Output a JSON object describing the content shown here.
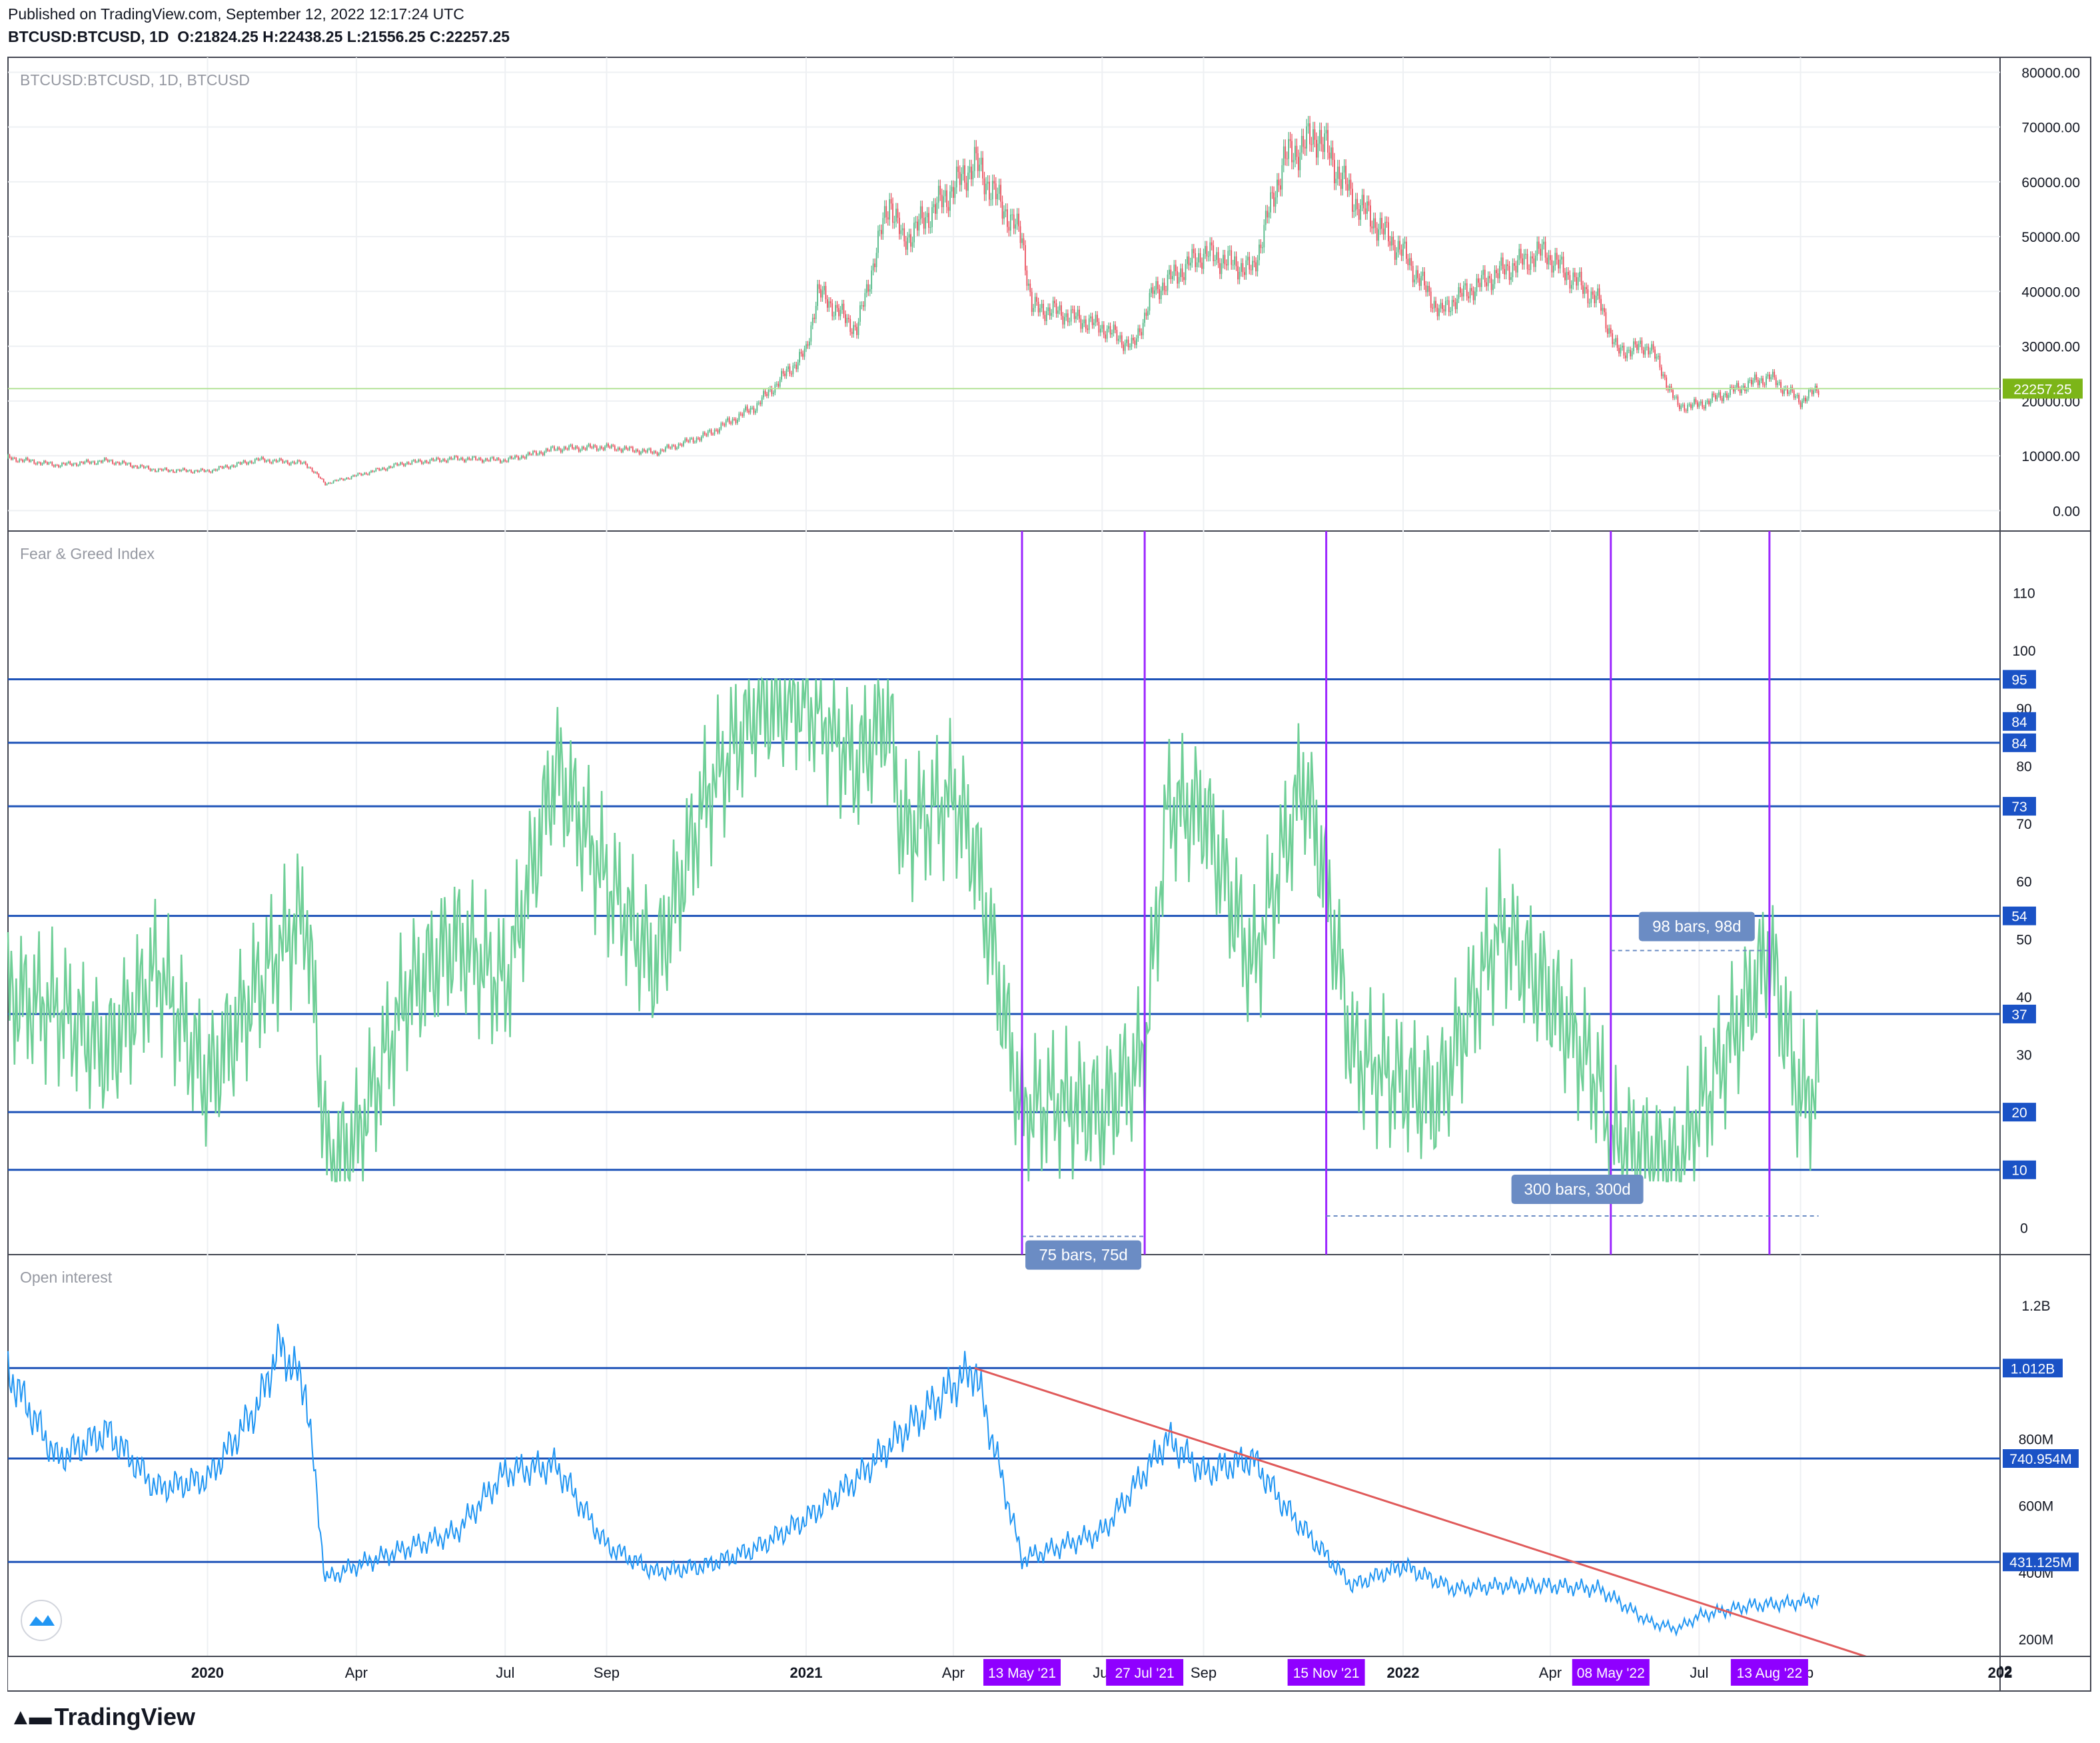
{
  "header": {
    "published": "Published on TradingView.com, September 12, 2022 12:17:24 UTC",
    "symbol": "BTCUSD:BTCUSD, 1D",
    "open_label": "O:",
    "open": "21824.25",
    "high_label": "H:",
    "high": "22438.25",
    "low_label": "L:",
    "low": "21556.25",
    "close_label": "C:",
    "close": "22257.25"
  },
  "brand": {
    "name": "TradingView",
    "logo_icon": "tradingview-logo-icon"
  },
  "chart_data": [
    {
      "type": "line",
      "title": "BTCUSD:BTCUSD, 1D, BTCUSD",
      "style": "candlestick",
      "x": [
        "2019-09-01",
        "2019-10-01",
        "2019-11-01",
        "2019-12-01",
        "2020-01-01",
        "2020-02-01",
        "2020-03-01",
        "2020-03-13",
        "2020-04-01",
        "2020-05-01",
        "2020-06-01",
        "2020-07-01",
        "2020-08-01",
        "2020-09-01",
        "2020-10-01",
        "2020-11-01",
        "2020-12-01",
        "2021-01-01",
        "2021-01-08",
        "2021-02-01",
        "2021-02-21",
        "2021-03-01",
        "2021-04-01",
        "2021-04-14",
        "2021-05-13",
        "2021-05-19",
        "2021-06-01",
        "2021-07-01",
        "2021-07-20",
        "2021-08-01",
        "2021-09-01",
        "2021-10-01",
        "2021-10-20",
        "2021-11-10",
        "2021-12-01",
        "2022-01-01",
        "2022-01-24",
        "2022-02-01",
        "2022-03-01",
        "2022-03-29",
        "2022-04-01",
        "2022-05-01",
        "2022-05-12",
        "2022-06-01",
        "2022-06-18",
        "2022-07-01",
        "2022-08-01",
        "2022-08-13",
        "2022-09-01",
        "2022-09-12"
      ],
      "values": [
        9600,
        8300,
        9100,
        7400,
        7200,
        9300,
        8600,
        4900,
        6400,
        8700,
        9500,
        9200,
        11300,
        11600,
        10600,
        13800,
        19000,
        29000,
        40000,
        33000,
        57000,
        49000,
        58800,
        63500,
        49800,
        37000,
        36500,
        33500,
        29800,
        39800,
        47000,
        43800,
        64000,
        68700,
        57000,
        47000,
        36000,
        38500,
        43500,
        47400,
        46000,
        38000,
        29000,
        30000,
        19000,
        19300,
        23200,
        24400,
        20000,
        22257.25
      ],
      "last_price": "22257.25",
      "last_price_color": "#7cb518",
      "up_color": "#53b987",
      "down_color": "#eb4d5c",
      "yticks": [
        "80000.00",
        "70000.00",
        "60000.00",
        "50000.00",
        "40000.00",
        "30000.00",
        "20000.00",
        "10000.00",
        "0.00"
      ],
      "ylim": [
        -3000,
        82000
      ]
    },
    {
      "type": "line",
      "title": "Fear & Greed Index",
      "color": "#6fcf97",
      "x": [
        "2019-09-01",
        "2019-10-01",
        "2019-11-01",
        "2019-12-01",
        "2020-01-01",
        "2020-02-01",
        "2020-03-01",
        "2020-03-15",
        "2020-04-01",
        "2020-05-01",
        "2020-06-01",
        "2020-07-01",
        "2020-08-01",
        "2020-09-01",
        "2020-10-01",
        "2020-11-01",
        "2020-12-01",
        "2021-01-01",
        "2021-02-01",
        "2021-02-20",
        "2021-03-01",
        "2021-04-01",
        "2021-04-14",
        "2021-05-13",
        "2021-06-01",
        "2021-07-01",
        "2021-07-27",
        "2021-08-10",
        "2021-09-01",
        "2021-10-01",
        "2021-11-01",
        "2021-11-15",
        "2021-12-01",
        "2022-01-01",
        "2022-01-22",
        "2022-02-01",
        "2022-03-01",
        "2022-04-01",
        "2022-05-01",
        "2022-05-08",
        "2022-06-01",
        "2022-06-18",
        "2022-07-01",
        "2022-08-01",
        "2022-08-13",
        "2022-09-01",
        "2022-09-12"
      ],
      "values": [
        40,
        38,
        30,
        45,
        25,
        42,
        55,
        10,
        15,
        40,
        50,
        42,
        80,
        60,
        45,
        75,
        90,
        92,
        80,
        90,
        68,
        75,
        65,
        20,
        22,
        20,
        30,
        73,
        72,
        45,
        78,
        60,
        30,
        25,
        22,
        30,
        52,
        40,
        25,
        15,
        12,
        10,
        20,
        40,
        48,
        22,
        25
      ],
      "ylim": [
        -4,
        120
      ],
      "yticks": [
        "110",
        "100",
        "90",
        "80",
        "70",
        "60",
        "50",
        "40",
        "30",
        "20",
        "10",
        "0"
      ],
      "levels": [
        {
          "label": "95",
          "value": 95
        },
        {
          "label": "84",
          "value": 84
        },
        {
          "label": "84",
          "value": 84
        },
        {
          "label": "73",
          "value": 73
        },
        {
          "label": "54",
          "value": 54
        },
        {
          "label": "37",
          "value": 37
        },
        {
          "label": "20",
          "value": 20
        },
        {
          "label": "10",
          "value": 10
        }
      ],
      "measurements": [
        {
          "label": "75 bars, 75d",
          "from": "2021-05-13",
          "to": "2021-07-27"
        },
        {
          "label": "300 bars, 300d",
          "from": "2021-11-15",
          "to": "2022-09-12"
        },
        {
          "label": "98 bars, 98d",
          "from": "2022-05-08",
          "to": "2022-08-13"
        }
      ]
    },
    {
      "type": "line",
      "title": "Open interest",
      "color": "#2196f3",
      "x": [
        "2019-09-01",
        "2019-10-01",
        "2019-11-01",
        "2019-12-01",
        "2020-01-01",
        "2020-02-01",
        "2020-02-14",
        "2020-03-01",
        "2020-03-13",
        "2020-04-01",
        "2020-05-01",
        "2020-06-01",
        "2020-07-01",
        "2020-08-01",
        "2020-09-01",
        "2020-10-01",
        "2020-11-01",
        "2020-12-01",
        "2021-01-01",
        "2021-02-01",
        "2021-03-01",
        "2021-04-01",
        "2021-04-14",
        "2021-05-13",
        "2021-06-01",
        "2021-07-01",
        "2021-07-27",
        "2021-08-10",
        "2021-09-01",
        "2021-10-01",
        "2021-10-20",
        "2021-11-15",
        "2021-12-01",
        "2022-01-01",
        "2022-02-01",
        "2022-03-01",
        "2022-04-01",
        "2022-05-01",
        "2022-06-01",
        "2022-06-18",
        "2022-07-01",
        "2022-08-01",
        "2022-09-01",
        "2022-09-12"
      ],
      "values": [
        1000,
        740,
        820,
        650,
        680,
        900,
        1080,
        950,
        380,
        420,
        470,
        520,
        700,
        720,
        480,
        400,
        420,
        470,
        560,
        680,
        820,
        960,
        1010,
        440,
        470,
        520,
        700,
        800,
        700,
        740,
        600,
        450,
        360,
        420,
        350,
        360,
        360,
        350,
        250,
        230,
        270,
        300,
        310,
        320
      ],
      "ylim": [
        160,
        1340
      ],
      "ytick_values": [
        1200,
        800,
        600,
        400,
        200
      ],
      "yticks": [
        "1.2B",
        "800M",
        "600M",
        "400M",
        "200M"
      ],
      "levels": [
        {
          "label": "1.012B",
          "value": 1012
        },
        {
          "label": "740.954M",
          "value": 740.954
        },
        {
          "label": "431.125M",
          "value": 431.125
        }
      ],
      "trendline": {
        "from": [
          "2021-04-14",
          1012
        ],
        "to": [
          "2022-11-10",
          100
        ],
        "color": "#e05b5b"
      }
    }
  ],
  "time_axis": {
    "ticks": [
      {
        "label": "2020",
        "date": "2020-01-01",
        "bold": true
      },
      {
        "label": "Apr",
        "date": "2020-04-01"
      },
      {
        "label": "Jul",
        "date": "2020-07-01"
      },
      {
        "label": "Sep",
        "date": "2020-09-01"
      },
      {
        "label": "2021",
        "date": "2021-01-01",
        "bold": true
      },
      {
        "label": "Apr",
        "date": "2021-04-01"
      },
      {
        "label": "Jul",
        "date": "2021-07-01"
      },
      {
        "label": "Sep",
        "date": "2021-09-01"
      },
      {
        "label": "2022",
        "date": "2022-01-01",
        "bold": true
      },
      {
        "label": "Apr",
        "date": "2022-04-01"
      },
      {
        "label": "Jul",
        "date": "2022-07-01"
      },
      {
        "label": "Sep",
        "date": "2022-09-01"
      },
      {
        "label": "202",
        "date": "2023-01-01",
        "bold": true
      }
    ],
    "markers": [
      {
        "label": "13 May '21",
        "date": "2021-05-13"
      },
      {
        "label": "27 Jul '21",
        "date": "2021-07-27"
      },
      {
        "label": "15 Nov '21",
        "date": "2021-11-15"
      },
      {
        "label": "08 May '22",
        "date": "2022-05-08"
      },
      {
        "label": "13 Aug '22",
        "date": "2022-08-13"
      }
    ],
    "range": [
      "2019-09-01",
      "2023-01-01"
    ]
  },
  "colors": {
    "level_line": "#1e53b8",
    "level_tag": "#1a52c6",
    "marker_line": "#9c27ff",
    "marker_tag": "#8f00ff",
    "measure_box": "#6b8cc4",
    "grid": "#eef0f3"
  }
}
